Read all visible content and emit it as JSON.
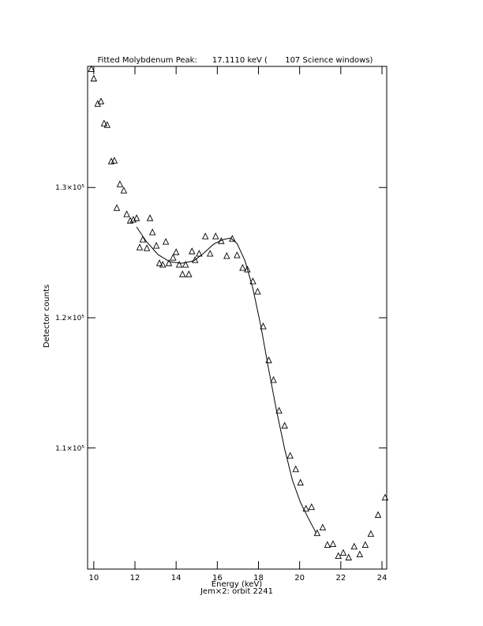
{
  "chart_data": {
    "type": "scatter",
    "title": "Fitted Molybdenum Peak:      17.1110 keV (       107 Science windows)",
    "x_label": "Energy (keV)",
    "subtitle": "Jem×2: orbit 2241",
    "y_label": "Detector counts",
    "xlim": [
      9.7,
      24.23
    ],
    "ylim": [
      100700,
      139300
    ],
    "xticks": [
      10,
      12,
      14,
      16,
      18,
      20,
      22,
      24
    ],
    "yticks": [
      {
        "value": 110000,
        "label": "1.1×10⁵"
      },
      {
        "value": 120000,
        "label": "1.2×10⁵"
      },
      {
        "value": 130000,
        "label": "1.3×10⁵"
      }
    ],
    "color": "#000000",
    "series": [
      {
        "marker": "triangle",
        "x": [
          9.88,
          10.0,
          10.19,
          10.35,
          10.5,
          10.65,
          10.85,
          11.0,
          11.12,
          11.27,
          11.46,
          11.6,
          11.77,
          11.92,
          12.08,
          12.23,
          12.38,
          12.58,
          12.73,
          12.85,
          13.04,
          13.19,
          13.35,
          13.5,
          13.65,
          13.85,
          14.0,
          14.15,
          14.31,
          14.46,
          14.62,
          14.77,
          14.92,
          15.12,
          15.42,
          15.65,
          15.92,
          16.19,
          16.46,
          16.73,
          16.96,
          17.23,
          17.46,
          17.73,
          17.96,
          18.23,
          18.5,
          18.73,
          19.0,
          19.27,
          19.54,
          19.81,
          20.04,
          20.31,
          20.58,
          20.85,
          21.12,
          21.35,
          21.62,
          21.88,
          22.12,
          22.38,
          22.65,
          22.92,
          23.19,
          23.46,
          23.81,
          24.15
        ],
        "values": [
          139090,
          138360,
          136420,
          136600,
          134910,
          134790,
          132000,
          132060,
          128420,
          130240,
          129760,
          127940,
          127450,
          127520,
          127640,
          125390,
          126000,
          125330,
          127640,
          126550,
          125520,
          124180,
          124060,
          125820,
          124180,
          124600,
          125030,
          124060,
          123330,
          124060,
          123330,
          125090,
          124420,
          124910,
          126240,
          124910,
          126240,
          125880,
          124730,
          126060,
          124790,
          123820,
          123700,
          122790,
          122000,
          119330,
          116730,
          115210,
          112850,
          111700,
          109390,
          108360,
          107330,
          105330,
          105450,
          103450,
          103880,
          102550,
          102610,
          101700,
          101940,
          101580,
          102420,
          101820,
          102550,
          103390,
          104850,
          106180
        ]
      },
      {
        "marker": "line",
        "x": [
          12.08,
          12.54,
          13.12,
          13.69,
          14.27,
          14.85,
          15.35,
          15.81,
          16.27,
          16.65,
          16.96,
          17.35,
          17.73,
          18.12,
          18.5,
          18.88,
          19.27,
          19.65,
          20.04,
          20.42,
          20.81
        ],
        "values": [
          126970,
          125880,
          124850,
          124300,
          124180,
          124360,
          124970,
          125640,
          126000,
          126120,
          125700,
          124360,
          122240,
          119330,
          116000,
          112850,
          109940,
          107520,
          105820,
          104610,
          103450
        ]
      }
    ]
  }
}
